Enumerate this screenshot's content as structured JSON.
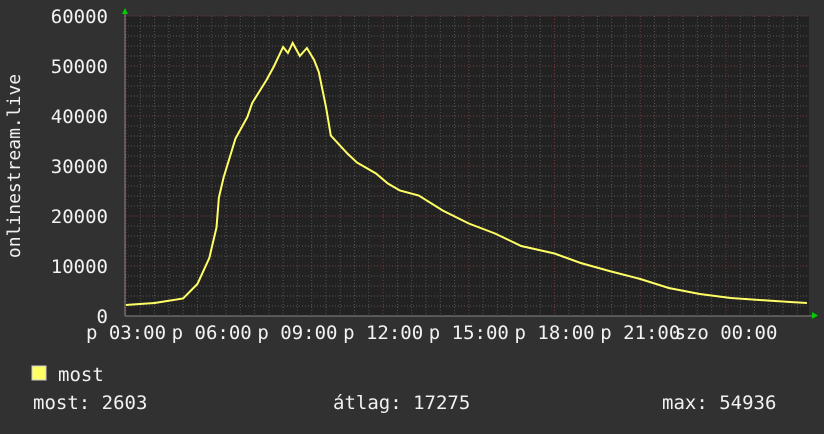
{
  "chart_data": {
    "type": "line",
    "ylabel": "onlinestream.live",
    "ylim": [
      0,
      60000
    ],
    "yticks": [
      "0",
      "10000",
      "20000",
      "30000",
      "40000",
      "50000",
      "60000"
    ],
    "xrange": [
      {
        "d": "p",
        "t": "03:00"
      },
      {
        "d": "szo",
        "t": "02:52"
      }
    ],
    "xticks": [
      "p 03:00",
      "p 06:00",
      "p 09:00",
      "p 12:00",
      "p 15:00",
      "p 18:00",
      "p 21:00",
      "szo 00:00"
    ],
    "grid": true,
    "colors": {
      "background": "#313131",
      "plot": "#222222",
      "minor_grid": "#555555",
      "major_grid": "#7a3a3a",
      "line": "#ffff66",
      "arrow": "#00cc00"
    },
    "series": [
      {
        "name": "most",
        "points": [
          {
            "d": "p",
            "t": "03:00",
            "v": 2200
          },
          {
            "d": "p",
            "t": "04:00",
            "v": 2600
          },
          {
            "d": "p",
            "t": "05:00",
            "v": 3500
          },
          {
            "d": "p",
            "t": "05:30",
            "v": 6400
          },
          {
            "d": "p",
            "t": "05:55",
            "v": 11600
          },
          {
            "d": "p",
            "t": "06:10",
            "v": 17700
          },
          {
            "d": "p",
            "t": "06:15",
            "v": 23700
          },
          {
            "d": "p",
            "t": "06:25",
            "v": 27700
          },
          {
            "d": "p",
            "t": "06:50",
            "v": 35500
          },
          {
            "d": "p",
            "t": "07:15",
            "v": 39800
          },
          {
            "d": "p",
            "t": "07:25",
            "v": 42600
          },
          {
            "d": "p",
            "t": "07:55",
            "v": 47200
          },
          {
            "d": "p",
            "t": "08:10",
            "v": 49800
          },
          {
            "d": "p",
            "t": "08:30",
            "v": 53800
          },
          {
            "d": "p",
            "t": "08:40",
            "v": 52600
          },
          {
            "d": "p",
            "t": "08:50",
            "v": 54600
          },
          {
            "d": "p",
            "t": "09:05",
            "v": 52000
          },
          {
            "d": "p",
            "t": "09:20",
            "v": 53600
          },
          {
            "d": "p",
            "t": "09:35",
            "v": 51200
          },
          {
            "d": "p",
            "t": "09:45",
            "v": 48800
          },
          {
            "d": "p",
            "t": "10:00",
            "v": 41800
          },
          {
            "d": "p",
            "t": "10:10",
            "v": 36100
          },
          {
            "d": "p",
            "t": "10:45",
            "v": 32500
          },
          {
            "d": "p",
            "t": "11:05",
            "v": 30700
          },
          {
            "d": "p",
            "t": "11:45",
            "v": 28500
          },
          {
            "d": "p",
            "t": "12:10",
            "v": 26500
          },
          {
            "d": "p",
            "t": "12:35",
            "v": 25100
          },
          {
            "d": "p",
            "t": "13:15",
            "v": 24100
          },
          {
            "d": "p",
            "t": "14:05",
            "v": 21100
          },
          {
            "d": "p",
            "t": "15:00",
            "v": 18500
          },
          {
            "d": "p",
            "t": "15:55",
            "v": 16500
          },
          {
            "d": "p",
            "t": "16:50",
            "v": 14000
          },
          {
            "d": "p",
            "t": "18:00",
            "v": 12500
          },
          {
            "d": "p",
            "t": "18:55",
            "v": 10600
          },
          {
            "d": "p",
            "t": "19:55",
            "v": 9000
          },
          {
            "d": "p",
            "t": "21:00",
            "v": 7400
          },
          {
            "d": "p",
            "t": "22:00",
            "v": 5600
          },
          {
            "d": "p",
            "t": "23:05",
            "v": 4400
          },
          {
            "d": "szo",
            "t": "00:10",
            "v": 3600
          },
          {
            "d": "szo",
            "t": "01:10",
            "v": 3200
          },
          {
            "d": "szo",
            "t": "02:15",
            "v": 2800
          },
          {
            "d": "szo",
            "t": "02:50",
            "v": 2603
          }
        ]
      }
    ],
    "legend": {
      "label": "most",
      "placement": "bottom-left"
    },
    "stats": {
      "current": "most: 2603",
      "average": "átlag: 17275",
      "max": "max: 54936"
    }
  }
}
